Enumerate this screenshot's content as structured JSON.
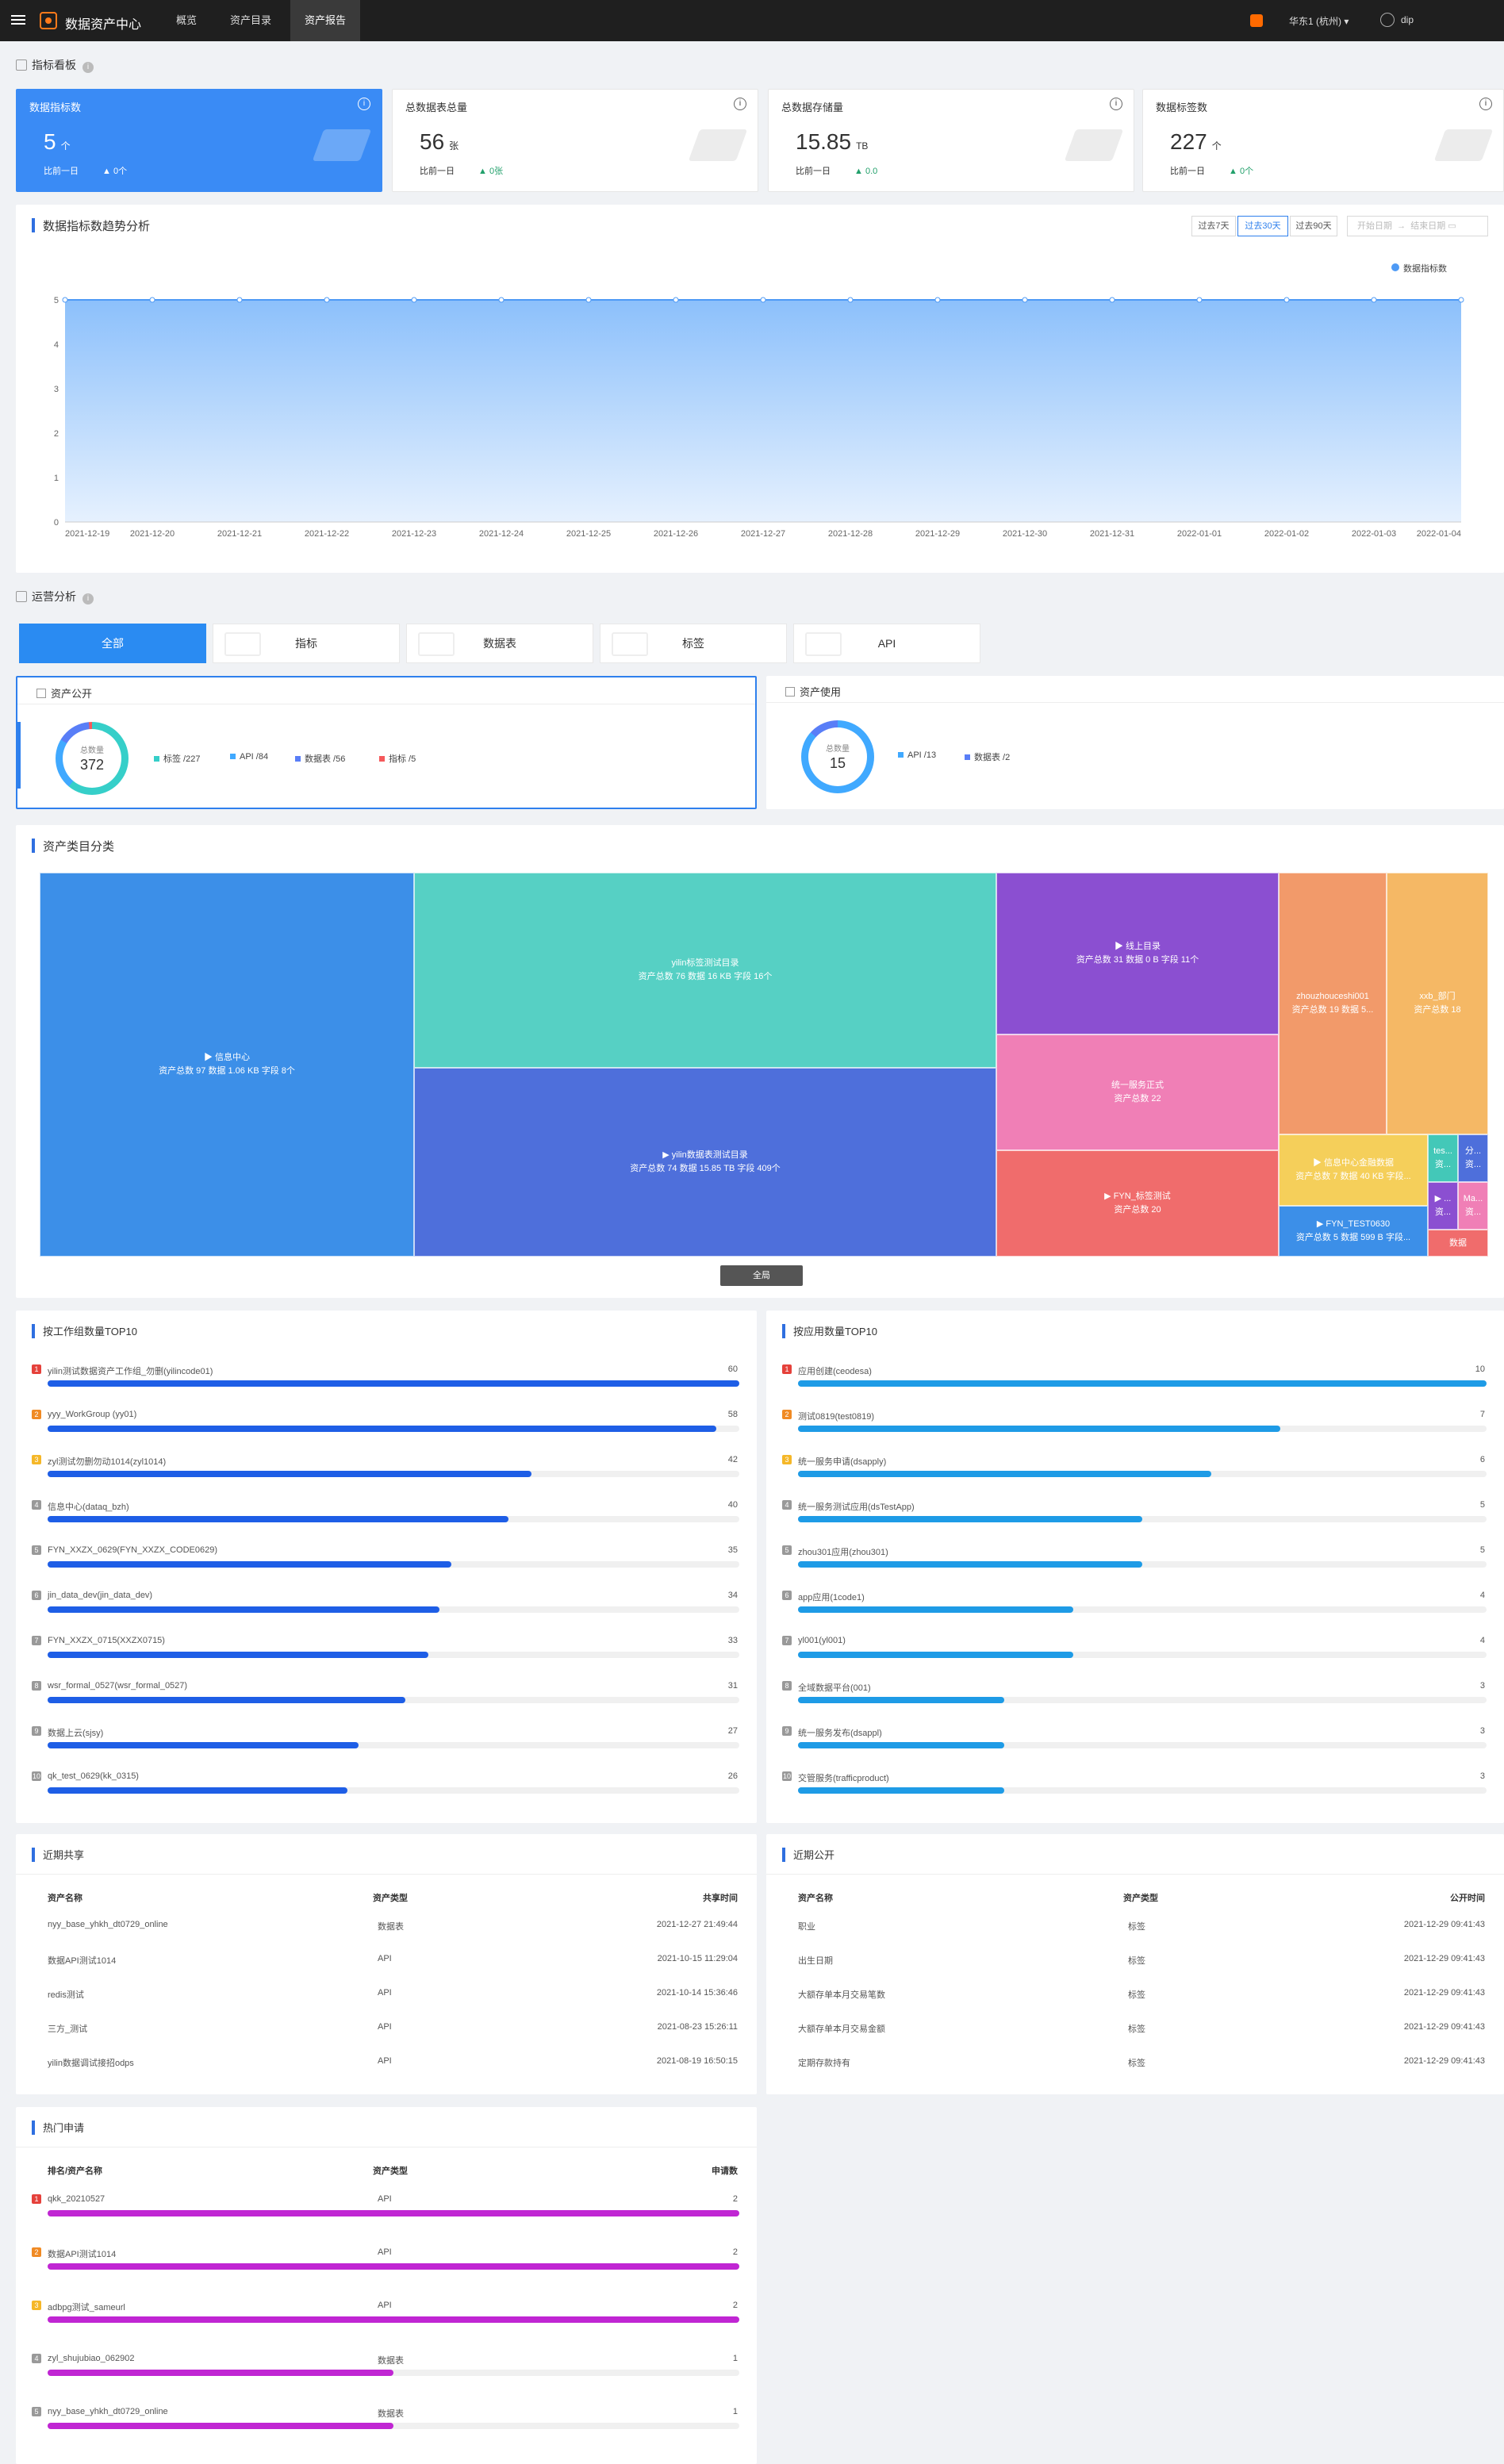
{
  "topbar": {
    "app_title": "数据资产中心",
    "tabs": [
      "概览",
      "资产目录",
      "资产报告"
    ],
    "active_tab": 2,
    "region": "华东1 (杭州)",
    "user": "dip"
  },
  "kpi_section": {
    "title": "指标看板"
  },
  "kpis": [
    {
      "label": "数据指标数",
      "value": "5",
      "unit": "个",
      "compare": "比前一日",
      "delta": "0个"
    },
    {
      "label": "总数据表总量",
      "value": "56",
      "unit": "张",
      "compare": "比前一日",
      "delta": "0张"
    },
    {
      "label": "总数据存储量",
      "value": "15.85",
      "unit": "TB",
      "compare": "比前一日",
      "delta": "0.0"
    },
    {
      "label": "数据标签数",
      "value": "227",
      "unit": "个",
      "compare": "比前一日",
      "delta": "0个"
    }
  ],
  "trend": {
    "title": "数据指标数趋势分析",
    "ranges": [
      "过去7天",
      "过去30天",
      "过去90天"
    ],
    "active_range": 1,
    "start_placeholder": "开始日期",
    "end_placeholder": "结束日期",
    "legend": "数据指标数"
  },
  "chart_data": {
    "type": "area",
    "x": [
      "2021-12-19",
      "2021-12-20",
      "2021-12-21",
      "2021-12-22",
      "2021-12-23",
      "2021-12-24",
      "2021-12-25",
      "2021-12-26",
      "2021-12-27",
      "2021-12-28",
      "2021-12-29",
      "2021-12-30",
      "2021-12-31",
      "2022-01-01",
      "2022-01-02",
      "2022-01-03",
      "2022-01-04"
    ],
    "series": [
      {
        "name": "数据指标数",
        "values": [
          5,
          5,
          5,
          5,
          5,
          5,
          5,
          5,
          5,
          5,
          5,
          5,
          5,
          5,
          5,
          5,
          5
        ]
      }
    ],
    "ylim": [
      0,
      5
    ],
    "yticks": [
      "0",
      "1",
      "2",
      "3",
      "4",
      "5"
    ],
    "grid": true,
    "legend_position": "top-right",
    "color": "#4e9af5"
  },
  "ops": {
    "title": "运营分析",
    "tabs": [
      "全部",
      "指标",
      "数据表",
      "标签",
      "API"
    ],
    "active_tab": 0,
    "public": {
      "title": "资产公开",
      "total_label": "总数量",
      "total": "372",
      "legend": [
        {
          "label": "标签 /227",
          "color": "#36cfc9"
        },
        {
          "label": "API /84",
          "color": "#40a9ff"
        },
        {
          "label": "数据表 /56",
          "color": "#597ef7"
        },
        {
          "label": "指标 /5",
          "color": "#f5595b"
        }
      ]
    },
    "usage": {
      "title": "资产使用",
      "total_label": "总数量",
      "total": "15",
      "legend": [
        {
          "label": "API /13",
          "color": "#40a9ff"
        },
        {
          "label": "数据表 /2",
          "color": "#597ef7"
        }
      ]
    }
  },
  "treemap": {
    "title": "资产类目分类",
    "nodes": [
      {
        "name": "▶ 信息中心",
        "detail": "资产总数 97  数据 1.06 KB  字段 8个",
        "color": "#3c8fe8"
      },
      {
        "name": "yilin标签测试目录",
        "detail": "资产总数 76  数据 16 KB  字段 16个",
        "color": "#56d0c4"
      },
      {
        "name": "▶ yilin数据表测试目录",
        "detail": "资产总数 74  数据 15.85 TB  字段 409个",
        "color": "#4e6fdb"
      },
      {
        "name": "▶ 线上目录",
        "detail": "资产总数 31  数据 0 B  字段 11个",
        "color": "#8b4fd1"
      },
      {
        "name": "统一服务正式",
        "detail": "资产总数 22",
        "color": "#f07fb6"
      },
      {
        "name": "▶ FYN_标签测试",
        "detail": "资产总数 20",
        "color": "#f06c6c"
      },
      {
        "name": "zhouzhouceshi001",
        "detail": "资产总数 19  数据 5...",
        "color": "#f29a6a"
      },
      {
        "name": "xxb_部门",
        "detail": "资产总数 18",
        "color": "#f5b865"
      },
      {
        "name": "▶ 信息中心金融数据",
        "detail": "资产总数 7  数据 40 KB  字段...",
        "color": "#f5cf5a"
      },
      {
        "name": "tes...",
        "detail": "资...",
        "color": "#43c8b8"
      },
      {
        "name": "分...",
        "detail": "资...",
        "color": "#4e6fdb"
      },
      {
        "name": "▶ FYN_TEST0630",
        "detail": "资产总数 5  数据 599 B  字段...",
        "color": "#3c8fe8"
      },
      {
        "name": "▶ ...",
        "detail": "资...",
        "color": "#8b4fd1"
      },
      {
        "name": "Ma...",
        "detail": "资...",
        "color": "#f07fb6"
      },
      {
        "name": "数据",
        "detail": "",
        "color": "#f06c6c"
      }
    ],
    "button": "全局"
  },
  "top_workgroup": {
    "title": "按工作组数量TOP10",
    "color": "#1e5ee6",
    "max": 60,
    "items": [
      {
        "rank": "1",
        "name": "yilin测试数据资产工作组_勿删(yilincode01)",
        "value": 60
      },
      {
        "rank": "2",
        "name": "yyy_WorkGroup (yy01)",
        "value": 58
      },
      {
        "rank": "3",
        "name": "zyl测试勿删勿动1014(zyl1014)",
        "value": 42
      },
      {
        "rank": "4",
        "name": "信息中心(dataq_bzh)",
        "value": 40
      },
      {
        "rank": "5",
        "name": "FYN_XXZX_0629(FYN_XXZX_CODE0629)",
        "value": 35
      },
      {
        "rank": "6",
        "name": "jin_data_dev(jin_data_dev)",
        "value": 34
      },
      {
        "rank": "7",
        "name": "FYN_XXZX_0715(XXZX0715)",
        "value": 33
      },
      {
        "rank": "8",
        "name": "wsr_formal_0527(wsr_formal_0527)",
        "value": 31
      },
      {
        "rank": "9",
        "name": "数据上云(sjsy)",
        "value": 27
      },
      {
        "rank": "10",
        "name": "qk_test_0629(kk_0315)",
        "value": 26
      }
    ]
  },
  "top_app": {
    "title": "按应用数量TOP10",
    "color": "#1e9be6",
    "max": 10,
    "items": [
      {
        "rank": "1",
        "name": "应用创建(ceodesa)",
        "value": 10
      },
      {
        "rank": "2",
        "name": "测试0819(test0819)",
        "value": 7
      },
      {
        "rank": "3",
        "name": "统一服务申请(dsapply)",
        "value": 6
      },
      {
        "rank": "4",
        "name": "统一服务测试应用(dsTestApp)",
        "value": 5
      },
      {
        "rank": "5",
        "name": "zhou301应用(zhou301)",
        "value": 5
      },
      {
        "rank": "6",
        "name": "app应用(1code1)",
        "value": 4
      },
      {
        "rank": "7",
        "name": "yl001(yl001)",
        "value": 4
      },
      {
        "rank": "8",
        "name": "全域数据平台(001)",
        "value": 3
      },
      {
        "rank": "9",
        "name": "统一服务发布(dsappl)",
        "value": 3
      },
      {
        "rank": "10",
        "name": "交管服务(trafficproduct)",
        "value": 3
      }
    ]
  },
  "recent_share": {
    "title": "近期共享",
    "headers": [
      "资产名称",
      "资产类型",
      "共享时间"
    ],
    "rows": [
      [
        "nyy_base_yhkh_dt0729_online",
        "数据表",
        "2021-12-27 21:49:44"
      ],
      [
        "数据API测试1014",
        "API",
        "2021-10-15 11:29:04"
      ],
      [
        "redis测试",
        "API",
        "2021-10-14 15:36:46"
      ],
      [
        "三方_测试",
        "API",
        "2021-08-23 15:26:11"
      ],
      [
        "yilin数据调试接招odps",
        "API",
        "2021-08-19 16:50:15"
      ]
    ]
  },
  "recent_public": {
    "title": "近期公开",
    "headers": [
      "资产名称",
      "资产类型",
      "公开时间"
    ],
    "rows": [
      [
        "职业",
        "标签",
        "2021-12-29 09:41:43"
      ],
      [
        "出生日期",
        "标签",
        "2021-12-29 09:41:43"
      ],
      [
        "大额存单本月交易笔数",
        "标签",
        "2021-12-29 09:41:43"
      ],
      [
        "大额存单本月交易金额",
        "标签",
        "2021-12-29 09:41:43"
      ],
      [
        "定期存款持有",
        "标签",
        "2021-12-29 09:41:43"
      ]
    ]
  },
  "hot_apply": {
    "title": "热门申请",
    "headers": [
      "排名/资产名称",
      "资产类型",
      "申请数"
    ],
    "color": "#c026d3",
    "max": 2,
    "items": [
      {
        "rank": "1",
        "name": "qkk_20210527",
        "type": "API",
        "value": 2
      },
      {
        "rank": "2",
        "name": "数据API测试1014",
        "type": "API",
        "value": 2
      },
      {
        "rank": "3",
        "name": "adbpg测试_sameurl",
        "type": "API",
        "value": 2
      },
      {
        "rank": "4",
        "name": "zyl_shujubiao_062902",
        "type": "数据表",
        "value": 1
      },
      {
        "rank": "5",
        "name": "nyy_base_yhkh_dt0729_online",
        "type": "数据表",
        "value": 1
      }
    ]
  },
  "rank_colors": [
    "#e5413b",
    "#f08a24",
    "#f5b728",
    "#999999"
  ]
}
